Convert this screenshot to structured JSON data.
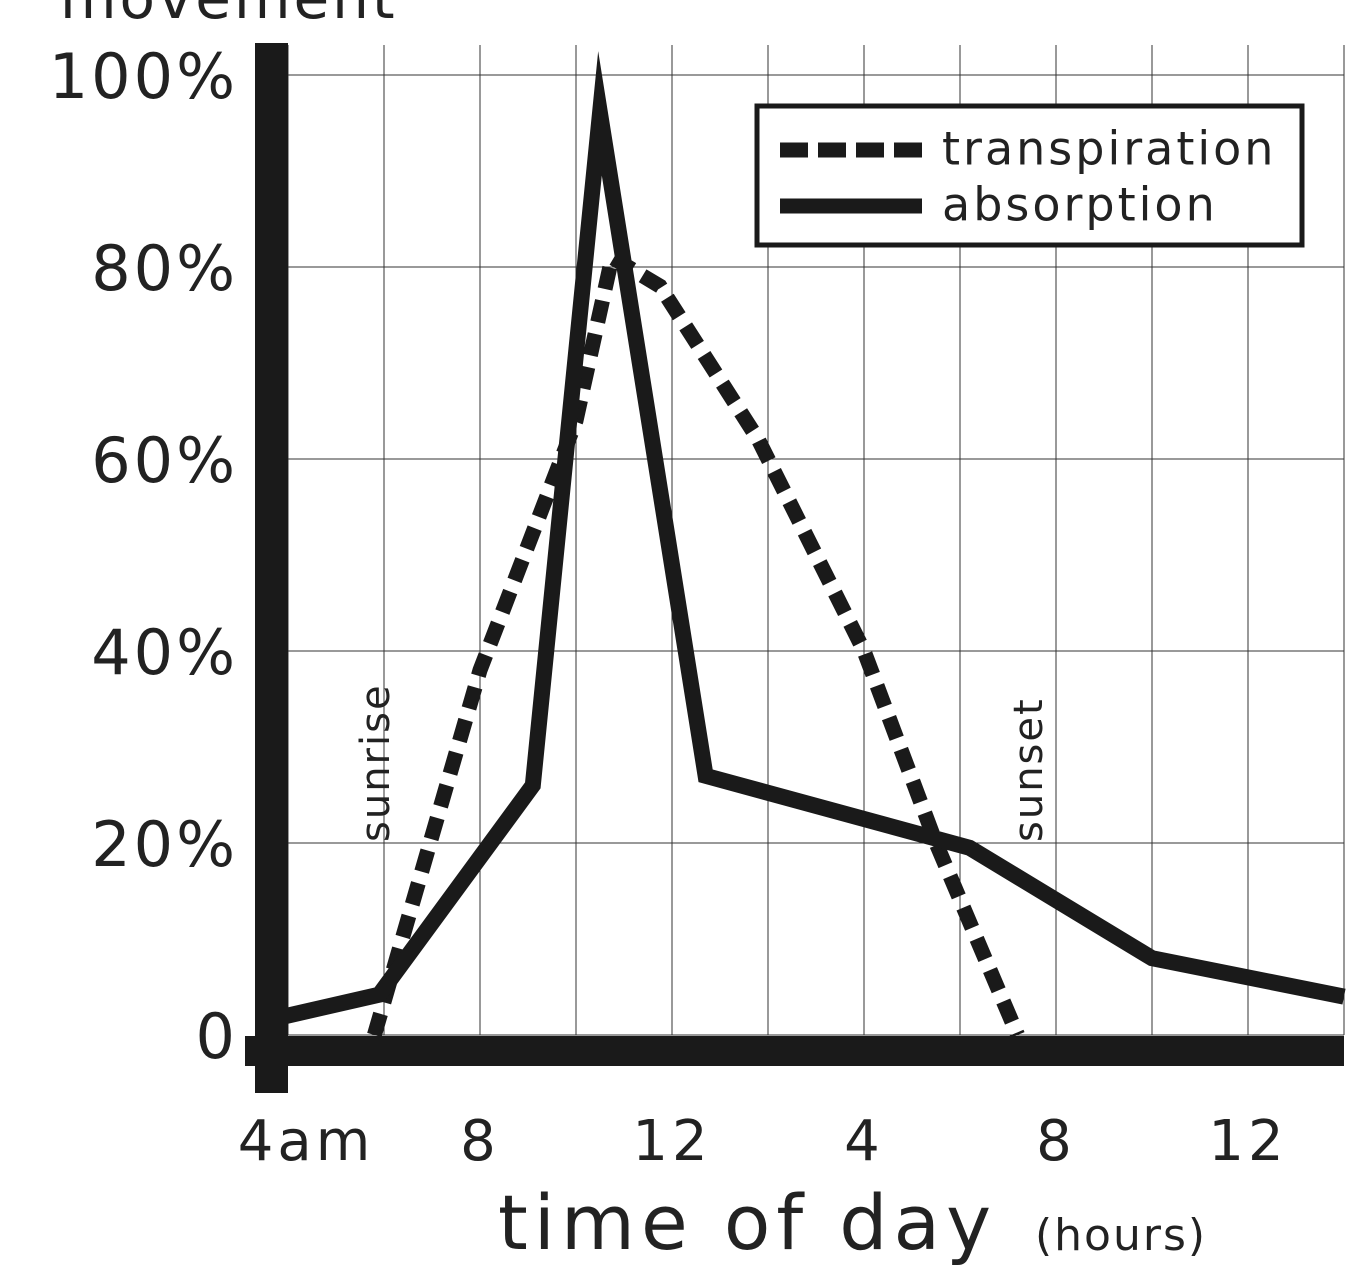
{
  "chart_data": {
    "type": "line",
    "y_label": "movement",
    "x_label": "time of day",
    "x_unit_label": "(hours)",
    "xlim": [
      3.625,
      26
    ],
    "ylim": [
      0,
      106
    ],
    "xticks": [
      {
        "value": 4,
        "label": "4am"
      },
      {
        "value": 8,
        "label": "8"
      },
      {
        "value": 12,
        "label": "12"
      },
      {
        "value": 16,
        "label": "4"
      },
      {
        "value": 20,
        "label": "8"
      },
      {
        "value": 24,
        "label": "12"
      }
    ],
    "x_minor_ticks": [
      6,
      10,
      14,
      18,
      22,
      26
    ],
    "yticks": [
      0,
      {
        "value": 20,
        "label": "20%"
      },
      {
        "value": 40,
        "label": "40%"
      },
      {
        "value": 60,
        "label": "60%"
      },
      {
        "value": 80,
        "label": "80%"
      },
      {
        "value": 100,
        "label": "100%"
      }
    ],
    "grid": true,
    "legend": "upper right",
    "annotations": [
      {
        "text": "sunrise",
        "x": 6
      },
      {
        "text": "sunset",
        "x": 19.6
      }
    ],
    "series": [
      {
        "name": "transpiration",
        "color": "#1a1a1a",
        "style": "dashed",
        "x": [
          5.8,
          8,
          10,
          10.75,
          11.75,
          13.8,
          15,
          16,
          17.5,
          19.2
        ],
        "values": [
          0,
          38,
          64,
          81,
          78,
          62,
          50,
          40,
          20,
          0
        ]
      },
      {
        "name": "absorption",
        "color": "#1a1a1a",
        "style": "solid",
        "x": [
          3.625,
          5.9,
          9.1,
          10.5,
          12.7,
          18.2,
          22,
          26
        ],
        "values": [
          1.6,
          4.2,
          26,
          96,
          27,
          19.5,
          8,
          4
        ]
      }
    ]
  }
}
